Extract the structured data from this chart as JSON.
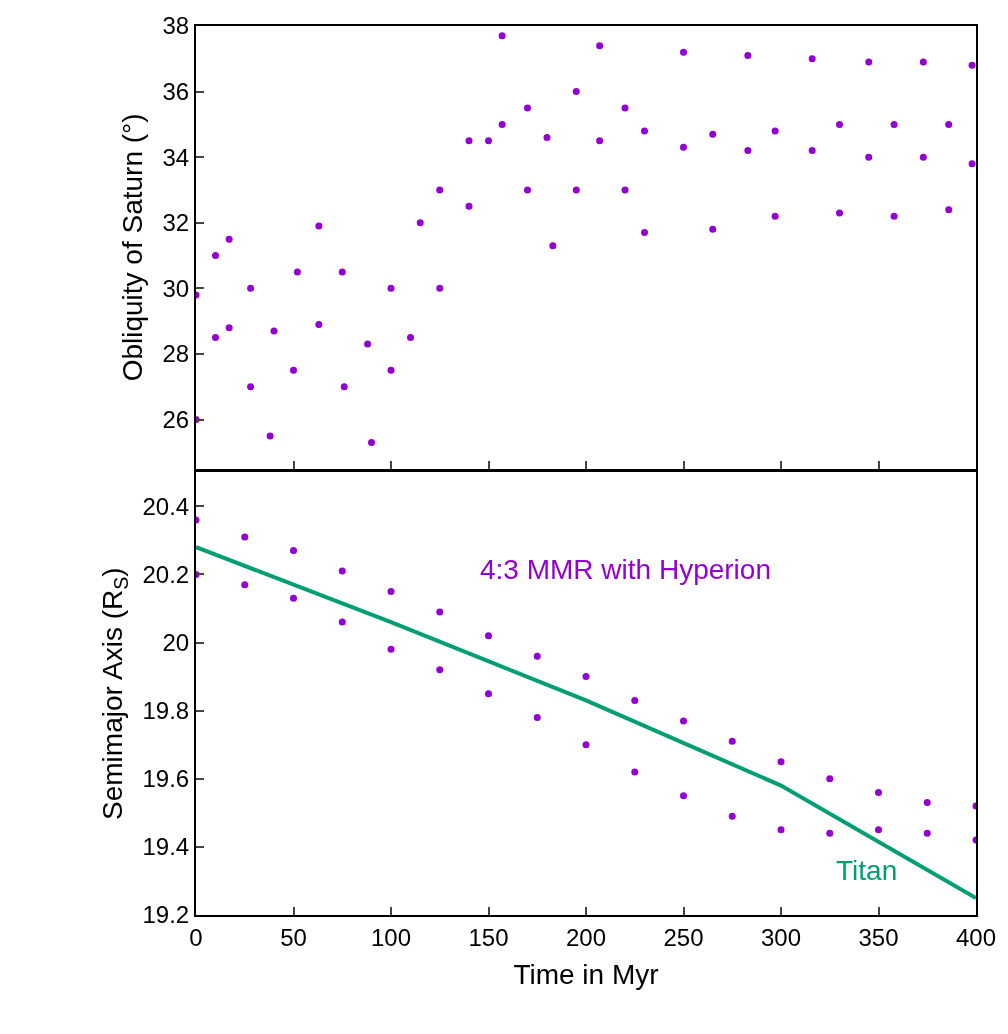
{
  "chart_data": [
    {
      "type": "scatter",
      "ylabel": "Obliquity of Saturn (°)",
      "xlim": [
        0,
        400
      ],
      "ylim": [
        24.5,
        38
      ],
      "yticks": [
        26,
        28,
        30,
        32,
        34,
        36,
        38
      ],
      "xticks": [
        0,
        50,
        100,
        150,
        200,
        250,
        300,
        350,
        400
      ],
      "tick_labels": "y",
      "legend": false,
      "marker": "circle",
      "series": [
        {
          "color": "#9400d3",
          "x": [
            0,
            10,
            17,
            28,
            40,
            52,
            63,
            75,
            88,
            100,
            115,
            125,
            140,
            157,
            170,
            180,
            195,
            207,
            220,
            230,
            250,
            265,
            283,
            297,
            316,
            330,
            345,
            358,
            373,
            386,
            398,
            0,
            10,
            17,
            28,
            38,
            50,
            63,
            76,
            90,
            100,
            110,
            125,
            140,
            150,
            157,
            170,
            183,
            195,
            207,
            220,
            230,
            250,
            265,
            283,
            297,
            316,
            330,
            345,
            358,
            373,
            386,
            398
          ],
          "values": [
            29.8,
            31,
            31.5,
            30,
            28.7,
            30.5,
            31.9,
            30.5,
            28.3,
            30,
            32,
            33,
            34.5,
            37.7,
            35.5,
            34.6,
            36,
            37.4,
            35.5,
            34.8,
            37.2,
            34.7,
            37.1,
            34.8,
            37,
            35,
            36.9,
            35,
            36.9,
            35,
            36.8,
            26,
            28.5,
            28.8,
            27,
            25.5,
            27.5,
            28.9,
            27,
            25.3,
            27.5,
            28.5,
            30,
            32.5,
            34.5,
            35,
            33,
            31.3,
            33,
            34.5,
            33,
            31.7,
            34.3,
            31.8,
            34.2,
            32.2,
            34.2,
            32.3,
            34,
            32.2,
            34,
            32.4,
            33.8
          ]
        }
      ]
    },
    {
      "type": "scatter",
      "xlabel": "Time in Myr",
      "ylabel": "Semimajor Axis (R$_{S}$)",
      "xlim": [
        0,
        400
      ],
      "ylim": [
        19.2,
        20.5
      ],
      "xticks": [
        0,
        50,
        100,
        150,
        200,
        250,
        300,
        350,
        400
      ],
      "yticks": [
        19.2,
        19.4,
        19.6,
        19.8,
        {
          "value": 20,
          "label": "20"
        },
        20.2,
        20.4
      ],
      "legend": false,
      "marker": "circle",
      "series": [
        {
          "name": "4:3 MMR with Hyperion",
          "color": "#9400d3",
          "x": [
            0,
            25,
            50,
            75,
            100,
            125,
            150,
            175,
            200,
            225,
            250,
            275,
            300,
            325,
            350,
            375,
            400,
            0,
            25,
            50,
            75,
            100,
            125,
            150,
            175,
            200,
            225,
            250,
            275,
            300,
            325,
            350,
            375,
            400
          ],
          "values": [
            20.36,
            20.31,
            20.27,
            20.21,
            20.15,
            20.09,
            20.02,
            19.96,
            19.9,
            19.83,
            19.77,
            19.71,
            19.65,
            19.6,
            19.56,
            19.53,
            19.52,
            20.2,
            20.17,
            20.13,
            20.06,
            19.98,
            19.92,
            19.85,
            19.78,
            19.7,
            19.62,
            19.55,
            19.49,
            19.45,
            19.44,
            19.45,
            19.44,
            19.42
          ]
        },
        {
          "name": "Titan",
          "type": "line",
          "marker": "none",
          "color": "#009e73",
          "x": [
            0,
            100,
            200,
            300,
            400
          ],
          "values": [
            20.28,
            20.06,
            19.83,
            19.58,
            19.25
          ]
        }
      ]
    }
  ]
}
